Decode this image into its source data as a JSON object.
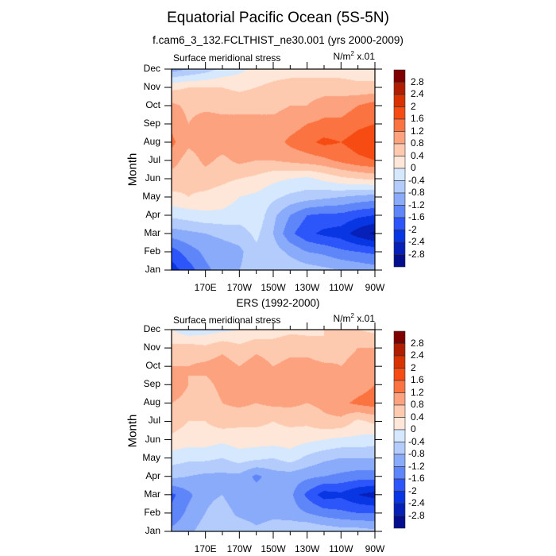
{
  "header": {
    "title": "Equatorial Pacific Ocean (5S-5N)",
    "subtitle": "f.cam6_3_132.FCLTHIST_ne30.001 (yrs 2000-2009)"
  },
  "chart_data": [
    {
      "type": "heatmap",
      "title": "f.cam6_3_132.FCLTHIST_ne30.001 (yrs 2000-2009)",
      "left_string": "Surface meridional stress",
      "right_string": {
        "units": "N/m",
        "power": "2",
        "scale": " x.01"
      },
      "xlabel": "",
      "ylabel": "Month",
      "x_ticks": [
        "170E",
        "170W",
        "150W",
        "130W",
        "110W",
        "90W"
      ],
      "x_tick_values": [
        170,
        190,
        210,
        230,
        250,
        270
      ],
      "xlim": [
        150,
        270
      ],
      "y_ticks": [
        "Jan",
        "Feb",
        "Mar",
        "Apr",
        "May",
        "Jun",
        "Jul",
        "Aug",
        "Sep",
        "Oct",
        "Nov",
        "Dec"
      ],
      "ylim": [
        1,
        12
      ],
      "x": [
        150,
        160,
        170,
        180,
        190,
        200,
        210,
        220,
        230,
        240,
        250,
        260,
        270
      ],
      "y": [
        1,
        2,
        3,
        4,
        5,
        6,
        7,
        8,
        9,
        10,
        11,
        12
      ],
      "z": [
        [
          -2.2,
          -1.8,
          -1.3,
          -1.0,
          -0.8,
          -0.6,
          -0.5,
          -0.5,
          -0.6,
          -0.7,
          -0.8,
          -0.9,
          -1.0
        ],
        [
          -1.8,
          -1.4,
          -1.1,
          -1.0,
          -0.9,
          -0.5,
          -0.6,
          -0.9,
          -1.2,
          -1.3,
          -1.5,
          -1.6,
          -1.7
        ],
        [
          -1.0,
          -0.9,
          -0.8,
          -0.7,
          -0.6,
          -0.3,
          -0.8,
          -1.5,
          -1.9,
          -2.1,
          -2.2,
          -2.6,
          -2.9
        ],
        [
          -0.3,
          -0.2,
          -0.1,
          -0.1,
          -0.2,
          -0.1,
          -0.7,
          -1.2,
          -1.6,
          -1.7,
          -1.7,
          -1.9,
          -2.0
        ],
        [
          0.3,
          0.4,
          0.3,
          0.2,
          0.0,
          -0.1,
          -0.3,
          -0.5,
          -0.6,
          -0.7,
          -0.8,
          -0.9,
          -1.0
        ],
        [
          0.6,
          0.5,
          0.6,
          0.5,
          0.4,
          0.3,
          0.1,
          0.0,
          -0.1,
          0.1,
          0.3,
          0.4,
          0.5
        ],
        [
          1.0,
          0.6,
          0.9,
          0.7,
          0.9,
          0.8,
          0.8,
          0.9,
          1.0,
          1.1,
          1.3,
          1.5,
          1.6
        ],
        [
          1.3,
          0.9,
          1.0,
          1.0,
          1.0,
          1.0,
          1.0,
          1.3,
          1.5,
          1.7,
          1.6,
          1.8,
          1.9
        ],
        [
          1.1,
          0.8,
          1.0,
          0.9,
          0.9,
          0.9,
          0.9,
          1.0,
          1.2,
          1.3,
          1.3,
          1.5,
          1.6
        ],
        [
          0.9,
          0.7,
          0.7,
          0.7,
          0.7,
          0.7,
          0.7,
          0.8,
          0.8,
          1.0,
          1.0,
          1.2,
          1.4
        ],
        [
          0.3,
          0.4,
          0.4,
          0.4,
          0.3,
          0.4,
          0.5,
          0.6,
          0.6,
          0.6,
          0.6,
          0.5,
          0.5
        ],
        [
          -1.0,
          -0.8,
          -0.6,
          -0.3,
          -0.1,
          0.1,
          0.2,
          0.2,
          0.2,
          0.2,
          0.2,
          0.2,
          0.2
        ]
      ]
    },
    {
      "type": "heatmap",
      "title": "ERS (1992-2000)",
      "left_string": "Surface meridional stress",
      "right_string": {
        "units": "N/m",
        "power": "2",
        "scale": " x.01"
      },
      "xlabel": "",
      "ylabel": "Month",
      "x_ticks": [
        "170E",
        "170W",
        "150W",
        "130W",
        "110W",
        "90W"
      ],
      "x_tick_values": [
        170,
        190,
        210,
        230,
        250,
        270
      ],
      "xlim": [
        150,
        270
      ],
      "y_ticks": [
        "Jan",
        "Feb",
        "Mar",
        "Apr",
        "May",
        "Jun",
        "Jul",
        "Aug",
        "Sep",
        "Oct",
        "Nov",
        "Dec"
      ],
      "ylim": [
        1,
        12
      ],
      "x": [
        150,
        160,
        170,
        180,
        190,
        200,
        210,
        220,
        230,
        240,
        250,
        260,
        270
      ],
      "y": [
        1,
        2,
        3,
        4,
        5,
        6,
        7,
        8,
        9,
        10,
        11,
        12
      ],
      "z": [
        [
          -1.1,
          -0.9,
          -0.6,
          -0.8,
          -0.5,
          -0.7,
          -0.6,
          -0.5,
          -0.4,
          -0.5,
          -0.6,
          -0.6,
          -0.7
        ],
        [
          -1.5,
          -1.1,
          -0.8,
          -0.6,
          -0.9,
          -1.0,
          -0.9,
          -1.0,
          -1.2,
          -1.4,
          -1.5,
          -1.6,
          -1.6
        ],
        [
          -1.7,
          -1.3,
          -0.9,
          -0.8,
          -1.1,
          -1.0,
          -1.0,
          -1.1,
          -1.7,
          -2.2,
          -2.1,
          -2.4,
          -2.6
        ],
        [
          -0.7,
          -0.8,
          -0.9,
          -0.9,
          -0.9,
          -1.3,
          -1.0,
          -1.0,
          -1.1,
          -1.2,
          -1.3,
          -1.4,
          -1.4
        ],
        [
          -0.2,
          -0.3,
          -0.3,
          -0.4,
          -0.2,
          -0.3,
          -0.4,
          -0.2,
          -0.5,
          -0.7,
          -0.8,
          -0.8,
          -0.8
        ],
        [
          0.3,
          0.2,
          0.2,
          0.1,
          0.2,
          0.2,
          0.2,
          0.2,
          0.1,
          0.0,
          -0.1,
          -0.1,
          -0.2
        ],
        [
          0.6,
          0.4,
          0.4,
          0.6,
          0.5,
          0.5,
          0.4,
          0.5,
          0.5,
          0.7,
          0.7,
          0.3,
          0.5
        ],
        [
          0.8,
          0.6,
          0.6,
          0.8,
          0.9,
          0.8,
          0.9,
          0.9,
          0.8,
          0.9,
          1.1,
          1.3,
          1.4
        ],
        [
          1.2,
          0.8,
          0.7,
          0.9,
          0.8,
          0.9,
          1.0,
          0.8,
          0.9,
          1.0,
          0.8,
          1.0,
          1.2
        ],
        [
          0.8,
          0.8,
          0.9,
          1.0,
          0.8,
          1.0,
          0.8,
          0.9,
          1.0,
          0.9,
          0.8,
          0.9,
          1.2
        ],
        [
          0.5,
          0.6,
          0.5,
          0.7,
          0.5,
          0.7,
          0.6,
          0.7,
          0.6,
          0.4,
          0.7,
          0.8,
          0.8
        ],
        [
          0.0,
          -0.3,
          -0.2,
          -0.1,
          0.0,
          0.1,
          0.2,
          0.3,
          0.3,
          0.4,
          0.4,
          0.4,
          0.3
        ]
      ]
    }
  ],
  "colorbar": {
    "labels": [
      "2.8",
      "2.4",
      "2",
      "1.6",
      "1.2",
      "0.8",
      "0.4",
      "0",
      "-0.4",
      "-0.8",
      "-1.2",
      "-1.6",
      "-2",
      "-2.4",
      "-2.8"
    ],
    "levels": [
      2.8,
      2.4,
      2.0,
      1.6,
      1.2,
      0.8,
      0.4,
      0.0,
      -0.4,
      -0.8,
      -1.2,
      -1.6,
      -2.0,
      -2.4,
      -2.8
    ],
    "colors": [
      "#7f0000",
      "#b01d00",
      "#d83200",
      "#f64c13",
      "#fb7340",
      "#fca27f",
      "#fdcab0",
      "#fee7d8",
      "#d6e8fd",
      "#b3ccfc",
      "#8aaafa",
      "#5f86f9",
      "#2c55fa",
      "#0836e3",
      "#0720b8",
      "#050e8c"
    ]
  }
}
